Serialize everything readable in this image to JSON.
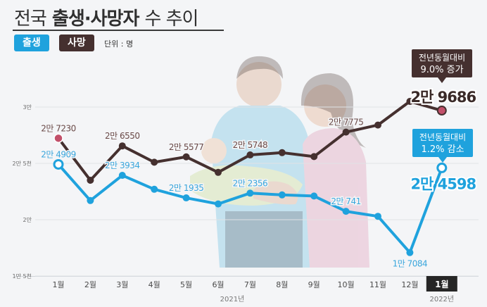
{
  "header": {
    "title_light": "전국",
    "title_bold": "출생·사망자",
    "title_tail": "수 추이",
    "legend_birth": "출생",
    "legend_death": "사망",
    "unit": "단위 : 명"
  },
  "chart_data": {
    "type": "line",
    "categories": [
      "1월",
      "2월",
      "3월",
      "4월",
      "5월",
      "6월",
      "7월",
      "8월",
      "9월",
      "10월",
      "11월",
      "12월",
      "1월"
    ],
    "year_labels": [
      "2021년",
      "2022년"
    ],
    "y_ticks": [
      {
        "value": 15000,
        "label": "1만 5천"
      },
      {
        "value": 20000,
        "label": "2만"
      },
      {
        "value": 25000,
        "label": "2만 5천"
      },
      {
        "value": 30000,
        "label": "3만"
      }
    ],
    "ylim": [
      15000,
      30000
    ],
    "colors": {
      "birth": "#1fa2dd",
      "death": "#45302f",
      "birth_label": "#3aa6dc",
      "death_label": "#6a4a48",
      "end_death": "#c2506a"
    },
    "series": [
      {
        "key": "death",
        "name": "사망",
        "values": [
          27230,
          23500,
          26550,
          25100,
          25577,
          24200,
          25748,
          25950,
          25600,
          27775,
          28400,
          30500,
          29686
        ],
        "labels": [
          {
            "index": 0,
            "text": "2만 7230"
          },
          {
            "index": 2,
            "text": "2만 6550"
          },
          {
            "index": 4,
            "text": "2만 5577"
          },
          {
            "index": 6,
            "text": "2만 5748"
          },
          {
            "index": 9,
            "text": "2만 7775"
          }
        ],
        "end_label": "2만 9686",
        "callout": [
          "전년동월대비",
          "9.0% 증가"
        ]
      },
      {
        "key": "birth",
        "name": "출생",
        "values": [
          24909,
          21700,
          23934,
          22700,
          21935,
          21400,
          22356,
          22200,
          22100,
          20741,
          20300,
          17084,
          24598
        ],
        "labels": [
          {
            "index": 0,
            "text": "2만 4909"
          },
          {
            "index": 2,
            "text": "2만 3934"
          },
          {
            "index": 4,
            "text": "2만 1935"
          },
          {
            "index": 6,
            "text": "2만 2356"
          },
          {
            "index": 9,
            "text": "2만 741"
          },
          {
            "index": 11,
            "text": "1만 7084"
          }
        ],
        "end_label": "2만 4598",
        "callout": [
          "전년동월대비",
          "1.2% 감소"
        ]
      }
    ]
  }
}
